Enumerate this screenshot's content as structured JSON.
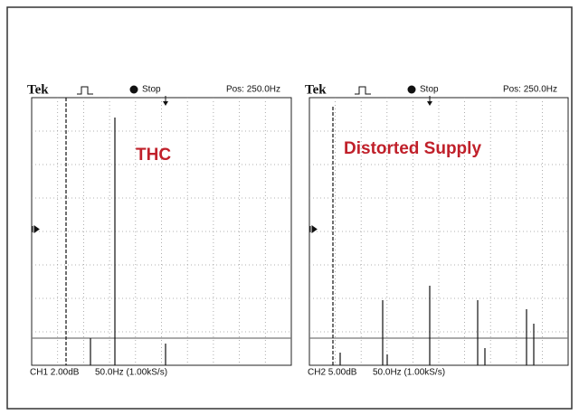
{
  "panels": [
    {
      "brand": "Tek",
      "status": "Stop",
      "position": "Pos: 250.0Hz",
      "channel": "CH1 2.00dB",
      "timebase": "50.0Hz (1.00kS/s)",
      "annotation": "THC"
    },
    {
      "brand": "Tek",
      "status": "Stop",
      "position": "Pos: 250.0Hz",
      "channel": "CH2 5.00dB",
      "timebase": "50.0Hz (1.00kS/s)",
      "annotation": "Distorted Supply"
    }
  ]
}
